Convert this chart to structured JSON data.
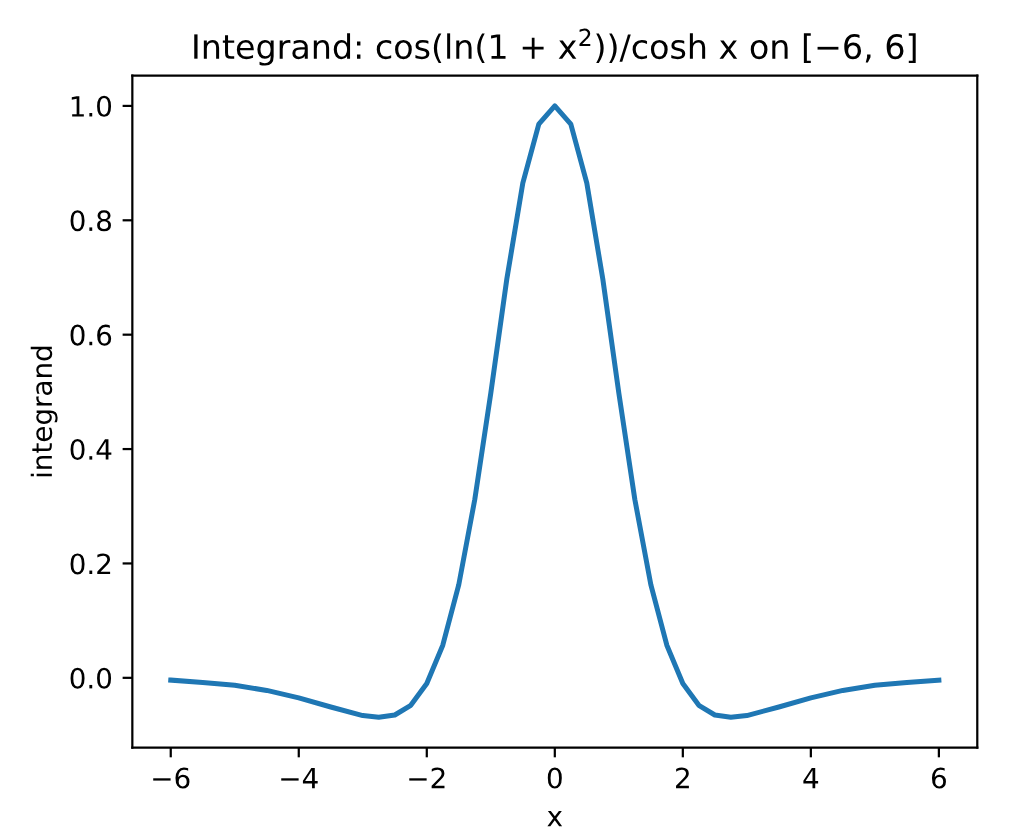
{
  "chart_data": {
    "type": "line",
    "title": "Integrand: cos(ln(1 + x$^{2}$))/cosh x on [−6, 6]",
    "xlabel": "x",
    "ylabel": "integrand",
    "x": [
      -6,
      -5.5,
      -5,
      -4.5,
      -4,
      -3.5,
      -3,
      -2.75,
      -2.5,
      -2.25,
      -2,
      -1.75,
      -1.5,
      -1.25,
      -1,
      -0.75,
      -0.5,
      -0.25,
      0,
      0.25,
      0.5,
      0.75,
      1,
      1.25,
      1.5,
      1.75,
      2,
      2.25,
      2.5,
      2.75,
      3,
      3.5,
      4,
      4.5,
      5,
      5.5,
      6
    ],
    "series": [
      {
        "color": "#1f77b4",
        "values": [
          -0.004,
          -0.008,
          -0.013,
          -0.022,
          -0.035,
          -0.051,
          -0.066,
          -0.069,
          -0.065,
          -0.048,
          -0.01,
          0.057,
          0.163,
          0.312,
          0.498,
          0.697,
          0.865,
          0.968,
          1.0,
          0.968,
          0.865,
          0.697,
          0.498,
          0.312,
          0.163,
          0.057,
          -0.01,
          -0.048,
          -0.065,
          -0.069,
          -0.066,
          -0.051,
          -0.035,
          -0.022,
          -0.013,
          -0.008,
          -0.004
        ]
      }
    ],
    "xlim": [
      -6.6,
      6.6
    ],
    "ylim": [
      -0.122,
      1.053
    ],
    "xticks": [
      {
        "value": -6,
        "label": "−6"
      },
      {
        "value": -4,
        "label": "−4"
      },
      {
        "value": -2,
        "label": "−2"
      },
      0,
      2,
      4,
      6
    ],
    "yticks": [
      {
        "value": 0,
        "label": "0.0"
      },
      {
        "value": 0.2,
        "label": "0.2"
      },
      {
        "value": 0.4,
        "label": "0.4"
      },
      {
        "value": 0.6,
        "label": "0.6"
      },
      {
        "value": 0.8,
        "label": "0.8"
      },
      {
        "value": 1,
        "label": "1.0"
      }
    ],
    "grid": false,
    "legend": false
  }
}
